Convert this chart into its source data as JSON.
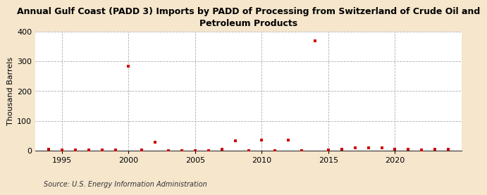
{
  "title": "Annual Gulf Coast (PADD 3) Imports by PADD of Processing from Switzerland of Crude Oil and\nPetroleum Products",
  "ylabel": "Thousand Barrels",
  "source": "Source: U.S. Energy Information Administration",
  "background_color": "#f5e6cc",
  "plot_background_color": "#ffffff",
  "xlim": [
    1993,
    2025
  ],
  "ylim": [
    0,
    400
  ],
  "yticks": [
    0,
    100,
    200,
    300,
    400
  ],
  "xticks": [
    1995,
    2000,
    2005,
    2010,
    2015,
    2020
  ],
  "years": [
    1994,
    1995,
    1996,
    1997,
    1998,
    1999,
    2000,
    2001,
    2002,
    2003,
    2004,
    2005,
    2006,
    2007,
    2008,
    2009,
    2010,
    2011,
    2012,
    2013,
    2014,
    2015,
    2016,
    2017,
    2018,
    2019,
    2020,
    2021,
    2022,
    2023,
    2024
  ],
  "values": [
    3,
    2,
    2,
    2,
    2,
    2,
    285,
    2,
    28,
    0,
    0,
    0,
    0,
    5,
    33,
    0,
    35,
    0,
    35,
    0,
    370,
    2,
    5,
    8,
    10,
    8,
    5,
    3,
    2,
    5,
    5
  ],
  "marker_color": "#cc0000",
  "marker_size": 12,
  "title_fontsize": 9,
  "ylabel_fontsize": 8,
  "tick_fontsize": 8,
  "source_fontsize": 7
}
